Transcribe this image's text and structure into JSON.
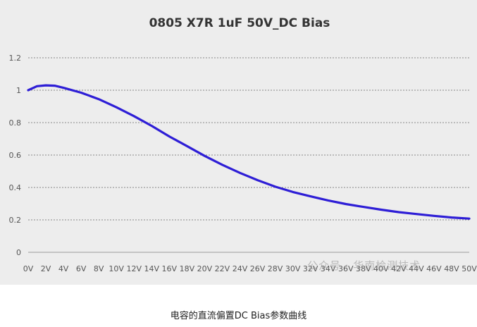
{
  "caption": "电容的直流偏置DC Bias参数曲线",
  "watermark": "公众号 · 华南检测技术",
  "colors": {
    "line": "#2e1ed6",
    "grid": "#888888",
    "axis": "#9a9a9a",
    "background": "#ededed"
  },
  "chart_data": {
    "type": "line",
    "title": "0805 X7R 1uF 50V_DC Bias",
    "xlabel": "",
    "ylabel": "",
    "ylim": [
      0,
      1.2
    ],
    "y_ticks": [
      "0",
      "0.2",
      "0.4",
      "0.6",
      "0.8",
      "1",
      "1.2"
    ],
    "x_ticks": [
      "0V",
      "2V",
      "4V",
      "6V",
      "8V",
      "10V",
      "12V",
      "14V",
      "16V",
      "18V",
      "20V",
      "22V",
      "24V",
      "26V",
      "28V",
      "30V",
      "32V",
      "34V",
      "36V",
      "38V",
      "40V",
      "42V",
      "44V",
      "46V",
      "48V",
      "50V"
    ],
    "grid": true,
    "legend": "none",
    "series": [
      {
        "values": [
          {
            "x": 0,
            "y": 1.0
          },
          {
            "x": 1,
            "y": 1.025
          },
          {
            "x": 2,
            "y": 1.03
          },
          {
            "x": 3,
            "y": 1.028
          },
          {
            "x": 4,
            "y": 1.015
          },
          {
            "x": 6,
            "y": 0.985
          },
          {
            "x": 8,
            "y": 0.945
          },
          {
            "x": 10,
            "y": 0.895
          },
          {
            "x": 12,
            "y": 0.84
          },
          {
            "x": 14,
            "y": 0.78
          },
          {
            "x": 16,
            "y": 0.715
          },
          {
            "x": 18,
            "y": 0.655
          },
          {
            "x": 20,
            "y": 0.595
          },
          {
            "x": 22,
            "y": 0.54
          },
          {
            "x": 24,
            "y": 0.49
          },
          {
            "x": 26,
            "y": 0.445
          },
          {
            "x": 28,
            "y": 0.405
          },
          {
            "x": 30,
            "y": 0.372
          },
          {
            "x": 32,
            "y": 0.345
          },
          {
            "x": 34,
            "y": 0.32
          },
          {
            "x": 36,
            "y": 0.298
          },
          {
            "x": 38,
            "y": 0.28
          },
          {
            "x": 40,
            "y": 0.263
          },
          {
            "x": 42,
            "y": 0.248
          },
          {
            "x": 44,
            "y": 0.236
          },
          {
            "x": 46,
            "y": 0.225
          },
          {
            "x": 48,
            "y": 0.215
          },
          {
            "x": 50,
            "y": 0.208
          }
        ]
      }
    ]
  }
}
